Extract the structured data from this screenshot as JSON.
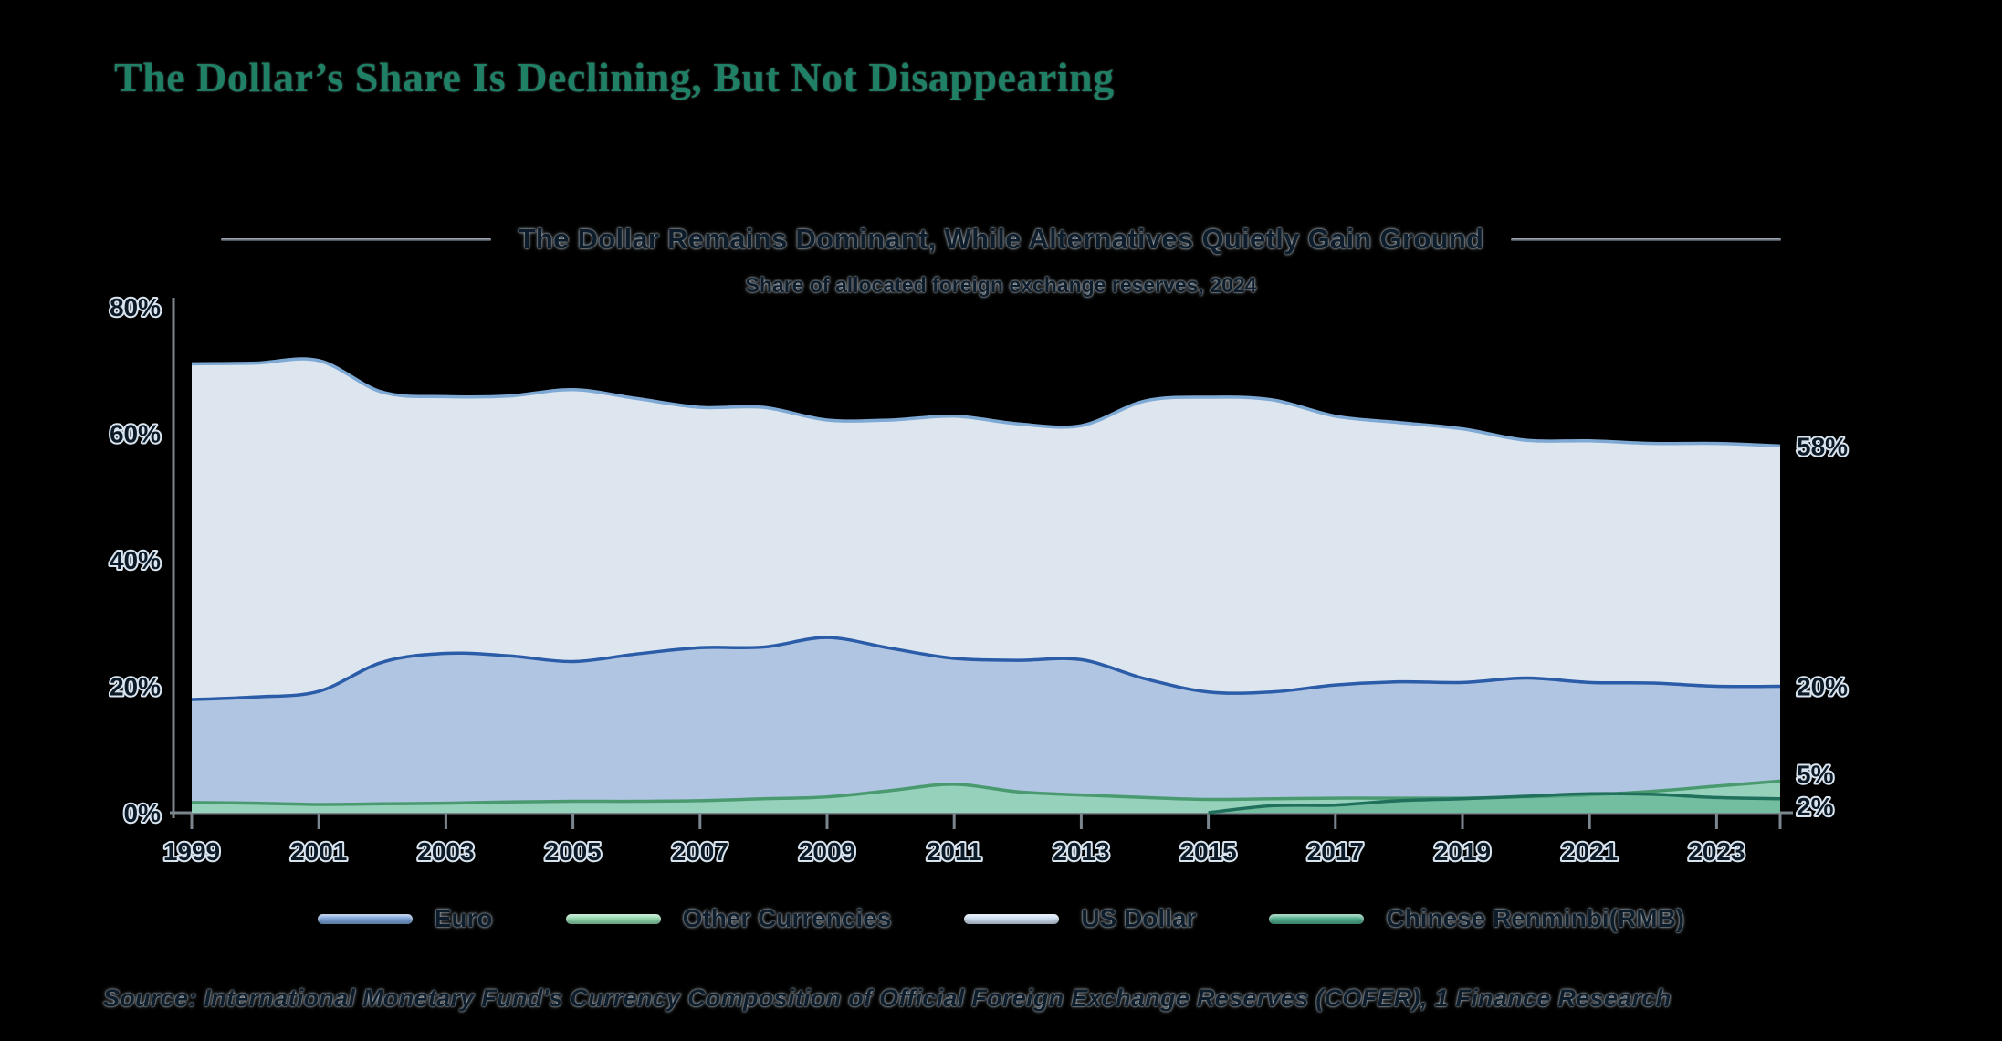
{
  "header": {
    "title": "The Dollar’s Share Is Declining, But Not Disappearing"
  },
  "chart": {
    "subtitle": "The Dollar Remains Dominant, While Alternatives Quietly Gain Ground",
    "caption": "Share of allocated foreign exchange reserves, 2024"
  },
  "chart_data": {
    "type": "area",
    "title": "The Dollar Remains Dominant, While Alternatives Quietly Gain Ground",
    "subtitle": "Share of allocated foreign exchange reserves, 2024",
    "stacked": false,
    "grid": false,
    "legend_position": "bottom",
    "ylim": [
      0,
      80
    ],
    "x": [
      1999,
      2000,
      2001,
      2002,
      2003,
      2004,
      2005,
      2006,
      2007,
      2008,
      2009,
      2010,
      2011,
      2012,
      2013,
      2014,
      2015,
      2016,
      2017,
      2018,
      2019,
      2020,
      2021,
      2022,
      2023,
      2024
    ],
    "xticks": [
      1999,
      2001,
      2003,
      2005,
      2007,
      2009,
      2011,
      2013,
      2015,
      2017,
      2019,
      2021,
      2023
    ],
    "yticks": [
      {
        "v": 0,
        "label": "0%"
      },
      {
        "v": 20,
        "label": "20%"
      },
      {
        "v": 40,
        "label": "40%"
      },
      {
        "v": 60,
        "label": "60%"
      },
      {
        "v": 80,
        "label": "80%"
      }
    ],
    "series": [
      {
        "name": "US Dollar",
        "color": "#7ea9d4",
        "fill": "rgba(230,238,249,0.96)",
        "end_label": "58%",
        "end_label_dy": 0,
        "values": [
          71.0,
          71.1,
          71.5,
          66.5,
          65.8,
          65.9,
          66.9,
          65.5,
          64.1,
          64.1,
          62.1,
          62.1,
          62.7,
          61.5,
          61.2,
          65.1,
          65.7,
          65.3,
          62.7,
          61.7,
          60.7,
          58.9,
          58.8,
          58.4,
          58.4,
          58.0
        ]
      },
      {
        "name": "Euro",
        "color": "#2b5ca8",
        "fill": "rgba(134,166,212,0.52)",
        "end_label": "20%",
        "end_label_dy": 0,
        "values": [
          17.9,
          18.3,
          19.2,
          23.8,
          25.2,
          24.8,
          23.9,
          25.1,
          26.1,
          26.2,
          27.7,
          26.0,
          24.4,
          24.1,
          24.2,
          21.2,
          19.1,
          19.1,
          20.2,
          20.7,
          20.6,
          21.3,
          20.6,
          20.5,
          20.0,
          20.0
        ]
      },
      {
        "name": "Other Currencies",
        "color": "#4a9a70",
        "fill": "rgba(141,212,173,0.75)",
        "end_label": "5%",
        "end_label_dy": -8,
        "values": [
          1.6,
          1.5,
          1.3,
          1.4,
          1.5,
          1.7,
          1.8,
          1.8,
          1.9,
          2.2,
          2.5,
          3.5,
          4.5,
          3.3,
          2.8,
          2.4,
          2.1,
          2.2,
          2.3,
          2.3,
          2.3,
          2.5,
          2.8,
          3.4,
          4.2,
          5.0
        ]
      },
      {
        "name": "Chinese Renminbi(RMB)",
        "color": "#20705c",
        "fill": "rgba(91,176,141,0.6)",
        "end_label": "2%",
        "end_label_dy": 8,
        "values": [
          null,
          null,
          null,
          null,
          null,
          null,
          null,
          null,
          null,
          null,
          null,
          null,
          null,
          null,
          null,
          null,
          0.0,
          1.1,
          1.2,
          1.9,
          2.2,
          2.6,
          3.0,
          2.9,
          2.4,
          2.2
        ]
      }
    ]
  },
  "legend": {
    "items": [
      {
        "label": "Euro",
        "color": "#7aa2d8"
      },
      {
        "label": "Other Currencies",
        "color": "#8fd6ab"
      },
      {
        "label": "US Dollar",
        "color": "#cfdff2"
      },
      {
        "label": "Chinese Renminbi(RMB)",
        "color": "#4fae8c"
      }
    ]
  },
  "footer": {
    "source": "Source: International Monetary Fund's Currency Composition of Official Foreign Exchange Reserves (COFER), 1 Finance Research"
  }
}
